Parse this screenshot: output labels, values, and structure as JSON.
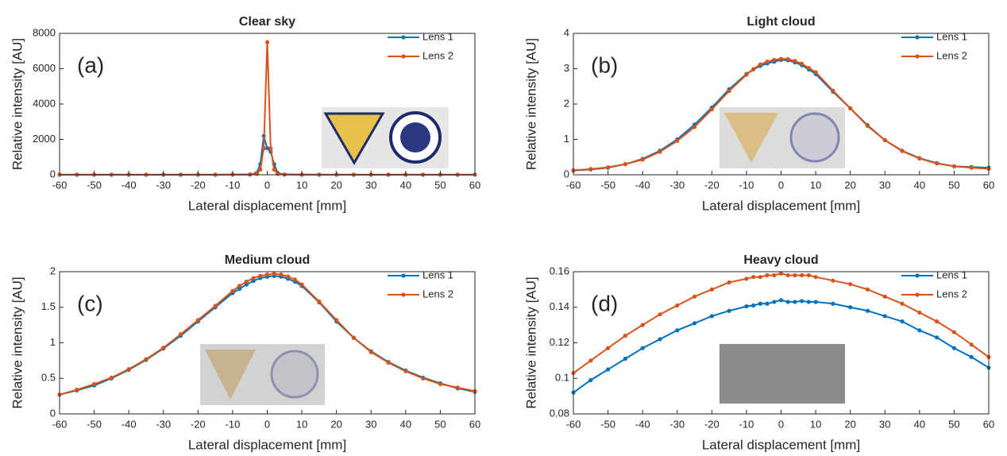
{
  "chart_data": [
    {
      "type": "line",
      "title": "Clear sky",
      "annotation": "(a)",
      "x_label": "Lateral displacement [mm]",
      "y_label": "Relative intensity [AU]",
      "x": [
        -60,
        -55,
        -50,
        -45,
        -40,
        -35,
        -30,
        -25,
        -20,
        -15,
        -10,
        -5,
        -3,
        -2,
        -1,
        0,
        1,
        2,
        3,
        5,
        10,
        15,
        20,
        25,
        30,
        35,
        40,
        45,
        50,
        55,
        60
      ],
      "series": [
        {
          "name": "Lens 1",
          "color": "#0072bd",
          "values": [
            5,
            5,
            5,
            5,
            5,
            5,
            5,
            5,
            5,
            5,
            10,
            20,
            100,
            600,
            2200,
            1500,
            1300,
            600,
            100,
            20,
            10,
            5,
            5,
            5,
            5,
            5,
            5,
            5,
            5,
            5,
            5
          ]
        },
        {
          "name": "Lens 2",
          "color": "#d95319",
          "values": [
            3,
            3,
            3,
            3,
            3,
            3,
            3,
            3,
            3,
            3,
            5,
            10,
            50,
            300,
            1500,
            7500,
            1500,
            300,
            50,
            10,
            5,
            3,
            3,
            3,
            3,
            3,
            3,
            3,
            3,
            3,
            3
          ]
        }
      ],
      "xlim": [
        -60,
        60
      ],
      "xticks": [
        -60,
        -50,
        -40,
        -30,
        -20,
        -10,
        0,
        10,
        20,
        30,
        40,
        50,
        60
      ],
      "ylim": [
        0,
        8000
      ],
      "yticks": [
        0,
        2000,
        4000,
        6000,
        8000
      ],
      "legend": "upper right"
    },
    {
      "type": "line",
      "title": "Light cloud",
      "annotation": "(b)",
      "x_label": "Lateral displacement [mm]",
      "y_label": "Relative intensity [AU]",
      "x": [
        -60,
        -55,
        -50,
        -45,
        -40,
        -35,
        -30,
        -25,
        -20,
        -15,
        -10,
        -8,
        -6,
        -4,
        -2,
        0,
        2,
        4,
        6,
        8,
        10,
        15,
        20,
        25,
        30,
        35,
        40,
        45,
        50,
        55,
        60
      ],
      "series": [
        {
          "name": "Lens 1",
          "color": "#0072bd",
          "values": [
            0.12,
            0.15,
            0.2,
            0.3,
            0.45,
            0.68,
            1.0,
            1.42,
            1.9,
            2.42,
            2.85,
            2.98,
            3.08,
            3.15,
            3.2,
            3.25,
            3.24,
            3.18,
            3.1,
            2.98,
            2.85,
            2.35,
            1.88,
            1.4,
            0.98,
            0.68,
            0.47,
            0.33,
            0.24,
            0.22,
            0.2
          ]
        },
        {
          "name": "Lens 2",
          "color": "#d95319",
          "values": [
            0.13,
            0.16,
            0.21,
            0.3,
            0.43,
            0.65,
            0.96,
            1.35,
            1.85,
            2.37,
            2.83,
            2.99,
            3.12,
            3.2,
            3.25,
            3.28,
            3.27,
            3.22,
            3.14,
            3.02,
            2.9,
            2.38,
            1.88,
            1.38,
            0.98,
            0.67,
            0.46,
            0.32,
            0.24,
            0.2,
            0.17
          ]
        }
      ],
      "xlim": [
        -60,
        60
      ],
      "xticks": [
        -60,
        -50,
        -40,
        -30,
        -20,
        -10,
        0,
        10,
        20,
        30,
        40,
        50,
        60
      ],
      "ylim": [
        0,
        4
      ],
      "yticks": [
        0,
        1,
        2,
        3,
        4
      ],
      "legend": "upper right"
    },
    {
      "type": "line",
      "title": "Medium cloud",
      "annotation": "(c)",
      "x_label": "Lateral displacement [mm]",
      "y_label": "Relative intensity [AU]",
      "x": [
        -60,
        -55,
        -50,
        -45,
        -40,
        -35,
        -30,
        -25,
        -20,
        -15,
        -10,
        -8,
        -6,
        -4,
        -2,
        0,
        2,
        4,
        6,
        8,
        10,
        15,
        20,
        25,
        30,
        35,
        40,
        45,
        50,
        55,
        60
      ],
      "series": [
        {
          "name": "Lens 1",
          "color": "#0072bd",
          "values": [
            0.27,
            0.33,
            0.4,
            0.5,
            0.62,
            0.76,
            0.92,
            1.1,
            1.3,
            1.5,
            1.7,
            1.76,
            1.82,
            1.87,
            1.91,
            1.93,
            1.94,
            1.93,
            1.9,
            1.86,
            1.8,
            1.57,
            1.3,
            1.07,
            0.88,
            0.73,
            0.61,
            0.51,
            0.43,
            0.36,
            0.31
          ]
        },
        {
          "name": "Lens 2",
          "color": "#d95319",
          "values": [
            0.27,
            0.34,
            0.42,
            0.51,
            0.63,
            0.77,
            0.93,
            1.12,
            1.32,
            1.52,
            1.73,
            1.8,
            1.86,
            1.91,
            1.94,
            1.96,
            1.97,
            1.96,
            1.93,
            1.89,
            1.82,
            1.58,
            1.32,
            1.07,
            0.87,
            0.72,
            0.6,
            0.5,
            0.42,
            0.37,
            0.32
          ]
        }
      ],
      "xlim": [
        -60,
        60
      ],
      "xticks": [
        -60,
        -50,
        -40,
        -30,
        -20,
        -10,
        0,
        10,
        20,
        30,
        40,
        50,
        60
      ],
      "ylim": [
        0,
        2
      ],
      "yticks": [
        0,
        0.5,
        1,
        1.5,
        2
      ],
      "legend": "upper right"
    },
    {
      "type": "line",
      "title": "Heavy cloud",
      "annotation": "(d)",
      "x_label": "Lateral displacement [mm]",
      "y_label": "Relative intensity [AU]",
      "x": [
        -60,
        -55,
        -50,
        -45,
        -40,
        -35,
        -30,
        -25,
        -20,
        -15,
        -10,
        -8,
        -6,
        -4,
        -2,
        0,
        2,
        4,
        6,
        8,
        10,
        15,
        20,
        25,
        30,
        35,
        40,
        45,
        50,
        55,
        60
      ],
      "series": [
        {
          "name": "Lens 1",
          "color": "#0072bd",
          "values": [
            0.092,
            0.099,
            0.105,
            0.111,
            0.117,
            0.122,
            0.127,
            0.131,
            0.135,
            0.138,
            0.1405,
            0.141,
            0.142,
            0.142,
            0.143,
            0.144,
            0.143,
            0.143,
            0.1435,
            0.143,
            0.143,
            0.142,
            0.14,
            0.138,
            0.135,
            0.132,
            0.127,
            0.123,
            0.117,
            0.112,
            0.106
          ]
        },
        {
          "name": "Lens 2",
          "color": "#d95319",
          "values": [
            0.103,
            0.11,
            0.117,
            0.124,
            0.13,
            0.136,
            0.141,
            0.146,
            0.15,
            0.154,
            0.156,
            0.157,
            0.157,
            0.158,
            0.158,
            0.159,
            0.158,
            0.158,
            0.158,
            0.158,
            0.157,
            0.155,
            0.153,
            0.15,
            0.146,
            0.142,
            0.137,
            0.132,
            0.126,
            0.119,
            0.112
          ]
        }
      ],
      "xlim": [
        -60,
        60
      ],
      "xticks": [
        -60,
        -50,
        -40,
        -30,
        -20,
        -10,
        0,
        10,
        20,
        30,
        40,
        50,
        60
      ],
      "ylim": [
        0.08,
        0.16
      ],
      "yticks": [
        0.08,
        0.1,
        0.12,
        0.14,
        0.16
      ],
      "legend": "upper right"
    }
  ]
}
